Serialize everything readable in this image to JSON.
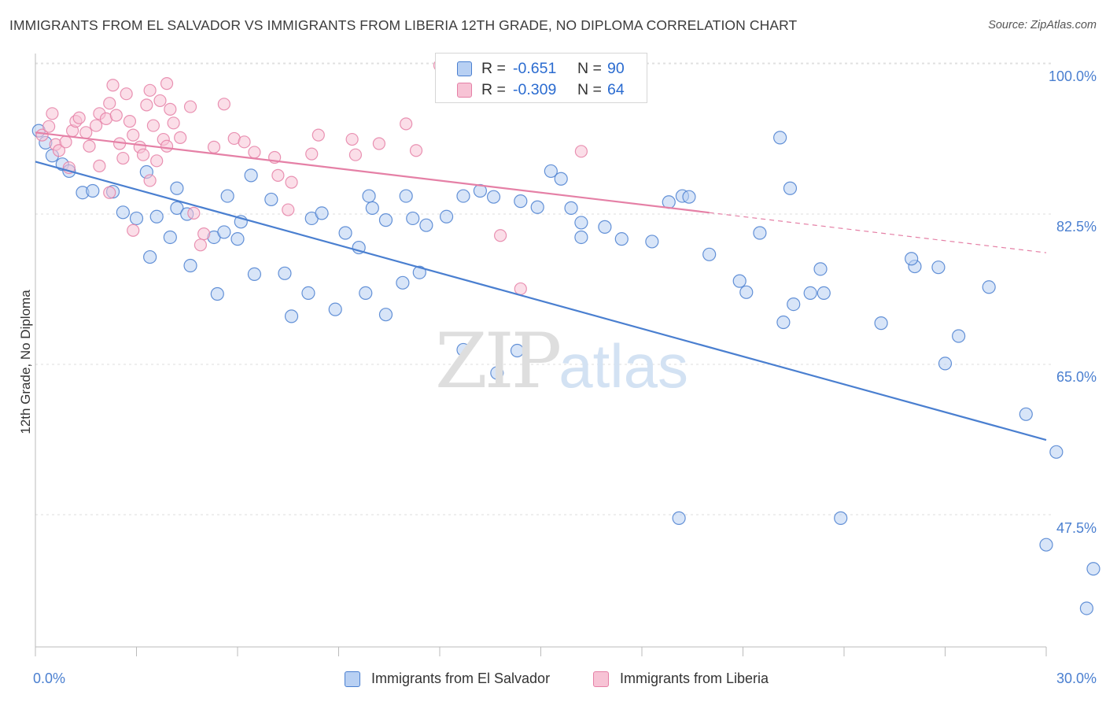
{
  "title": "IMMIGRANTS FROM EL SALVADOR VS IMMIGRANTS FROM LIBERIA 12TH GRADE, NO DIPLOMA CORRELATION CHART",
  "source": "Source: ZipAtlas.com",
  "watermark": {
    "zip": "ZIP",
    "atlas": "atlas"
  },
  "legend": {
    "r_label": "R =",
    "n_label": "N =",
    "rows": [
      {
        "r": "-0.651",
        "n": "90",
        "color": "#4a7fd0",
        "fill": "#b8d0f3"
      },
      {
        "r": "-0.309",
        "n": "64",
        "color": "#e580a6",
        "fill": "#f7c3d5"
      }
    ]
  },
  "chart_data": {
    "type": "scatter",
    "title": "IMMIGRANTS FROM EL SALVADOR VS IMMIGRANTS FROM LIBERIA 12TH GRADE, NO DIPLOMA CORRELATION CHART",
    "xlabel": "",
    "ylabel": "12th Grade, No Diploma",
    "xlim": [
      0,
      30
    ],
    "ylim": [
      32,
      102
    ],
    "x_tick_labels": [
      "0.0%",
      "30.0%"
    ],
    "y_ticks": [
      47.5,
      65.0,
      82.5,
      100.0
    ],
    "y_tick_labels": [
      "47.5%",
      "65.0%",
      "82.5%",
      "100.0%"
    ],
    "grid": "horizontal dashed",
    "series": [
      {
        "name": "Immigrants from El Salvador",
        "color": "#4a7fd0",
        "fill": "#b8d0f3",
        "trend": {
          "x": [
            0,
            30
          ],
          "y": [
            88.6,
            56.2
          ],
          "dashed_from": null
        },
        "points": [
          [
            0.1,
            92.2
          ],
          [
            0.3,
            90.8
          ],
          [
            0.5,
            89.3
          ],
          [
            0.8,
            88.3
          ],
          [
            1.0,
            87.5
          ],
          [
            1.4,
            85.0
          ],
          [
            1.7,
            85.2
          ],
          [
            2.3,
            85.1
          ],
          [
            2.6,
            82.7
          ],
          [
            3.0,
            82.0
          ],
          [
            3.6,
            82.2
          ],
          [
            3.3,
            87.4
          ],
          [
            4.2,
            83.2
          ],
          [
            4.2,
            85.5
          ],
          [
            4.5,
            82.5
          ],
          [
            5.7,
            84.6
          ],
          [
            6.1,
            81.6
          ],
          [
            6.4,
            87.0
          ],
          [
            7.0,
            84.2
          ],
          [
            5.3,
            79.8
          ],
          [
            5.6,
            80.4
          ],
          [
            6.0,
            79.6
          ],
          [
            4.0,
            79.8
          ],
          [
            3.4,
            77.5
          ],
          [
            4.6,
            76.5
          ],
          [
            5.4,
            73.2
          ],
          [
            6.5,
            75.5
          ],
          [
            7.4,
            75.6
          ],
          [
            8.1,
            73.3
          ],
          [
            8.2,
            82.0
          ],
          [
            9.2,
            80.3
          ],
          [
            9.6,
            78.6
          ],
          [
            10.0,
            83.2
          ],
          [
            10.4,
            81.8
          ],
          [
            11.0,
            84.6
          ],
          [
            11.6,
            81.2
          ],
          [
            12.2,
            82.2
          ],
          [
            11.4,
            75.7
          ],
          [
            10.9,
            74.5
          ],
          [
            8.9,
            71.4
          ],
          [
            9.8,
            73.3
          ],
          [
            7.6,
            70.6
          ],
          [
            12.7,
            84.6
          ],
          [
            13.2,
            85.2
          ],
          [
            13.6,
            84.5
          ],
          [
            15.3,
            87.5
          ],
          [
            15.6,
            86.6
          ],
          [
            14.4,
            84.0
          ],
          [
            14.9,
            83.3
          ],
          [
            16.2,
            81.5
          ],
          [
            16.9,
            81.0
          ],
          [
            17.4,
            79.6
          ],
          [
            18.3,
            79.3
          ],
          [
            18.8,
            83.9
          ],
          [
            19.2,
            84.6
          ],
          [
            19.4,
            84.5
          ],
          [
            16.2,
            79.8
          ],
          [
            15.9,
            83.2
          ],
          [
            20.0,
            77.8
          ],
          [
            20.9,
            74.7
          ],
          [
            21.1,
            73.4
          ],
          [
            21.5,
            80.3
          ],
          [
            22.1,
            91.4
          ],
          [
            22.4,
            85.5
          ],
          [
            22.2,
            69.9
          ],
          [
            22.5,
            72.0
          ],
          [
            23.0,
            73.3
          ],
          [
            23.3,
            76.1
          ],
          [
            23.4,
            73.3
          ],
          [
            23.9,
            47.1
          ],
          [
            25.1,
            69.8
          ],
          [
            26.1,
            76.4
          ],
          [
            26.0,
            77.3
          ],
          [
            26.8,
            76.3
          ],
          [
            27.0,
            65.1
          ],
          [
            27.4,
            68.3
          ],
          [
            28.3,
            74.0
          ],
          [
            29.4,
            59.2
          ],
          [
            30.3,
            54.8
          ],
          [
            30.0,
            44.0
          ],
          [
            31.4,
            41.2
          ],
          [
            31.2,
            36.6
          ],
          [
            19.1,
            47.1
          ],
          [
            12.7,
            66.7
          ],
          [
            13.7,
            64.0
          ],
          [
            14.3,
            66.6
          ],
          [
            10.4,
            70.8
          ],
          [
            8.5,
            82.6
          ],
          [
            9.9,
            84.6
          ],
          [
            11.2,
            82.0
          ]
        ]
      },
      {
        "name": "Immigrants from Liberia",
        "color": "#e580a6",
        "fill": "#f7c3d5",
        "trend": {
          "x": [
            0,
            30
          ],
          "y": [
            92.0,
            78.0
          ],
          "dashed_from": 20.0
        },
        "points": [
          [
            0.2,
            91.7
          ],
          [
            0.4,
            92.7
          ],
          [
            0.6,
            90.6
          ],
          [
            0.7,
            89.9
          ],
          [
            0.9,
            90.9
          ],
          [
            1.0,
            87.9
          ],
          [
            1.1,
            92.2
          ],
          [
            1.2,
            93.3
          ],
          [
            1.3,
            93.7
          ],
          [
            1.5,
            92.0
          ],
          [
            1.6,
            90.4
          ],
          [
            1.8,
            92.8
          ],
          [
            1.9,
            94.2
          ],
          [
            2.1,
            93.6
          ],
          [
            2.2,
            95.4
          ],
          [
            2.4,
            94.0
          ],
          [
            2.5,
            90.7
          ],
          [
            2.6,
            89.0
          ],
          [
            2.7,
            96.5
          ],
          [
            2.8,
            93.3
          ],
          [
            2.9,
            91.7
          ],
          [
            3.1,
            90.3
          ],
          [
            3.2,
            89.4
          ],
          [
            3.3,
            95.2
          ],
          [
            3.4,
            96.9
          ],
          [
            3.5,
            92.8
          ],
          [
            3.6,
            88.7
          ],
          [
            3.7,
            95.7
          ],
          [
            3.8,
            91.2
          ],
          [
            3.9,
            90.4
          ],
          [
            4.0,
            94.7
          ],
          [
            4.1,
            93.1
          ],
          [
            4.3,
            91.4
          ],
          [
            4.6,
            95.0
          ],
          [
            5.3,
            90.3
          ],
          [
            5.6,
            95.3
          ],
          [
            5.9,
            91.3
          ],
          [
            6.2,
            90.9
          ],
          [
            6.5,
            89.7
          ],
          [
            7.1,
            89.1
          ],
          [
            7.2,
            87.0
          ],
          [
            7.6,
            86.2
          ],
          [
            7.5,
            83.0
          ],
          [
            8.2,
            89.5
          ],
          [
            8.4,
            91.7
          ],
          [
            9.4,
            91.2
          ],
          [
            9.5,
            89.4
          ],
          [
            10.2,
            90.7
          ],
          [
            11.0,
            93.0
          ],
          [
            11.3,
            89.9
          ],
          [
            12.0,
            99.8
          ],
          [
            4.7,
            82.6
          ],
          [
            5.0,
            80.2
          ],
          [
            4.9,
            78.9
          ],
          [
            3.4,
            86.4
          ],
          [
            2.9,
            80.6
          ],
          [
            2.2,
            85.0
          ],
          [
            1.9,
            88.1
          ],
          [
            0.5,
            94.2
          ],
          [
            2.3,
            97.5
          ],
          [
            3.9,
            97.7
          ],
          [
            14.4,
            73.8
          ],
          [
            13.8,
            80.0
          ],
          [
            16.2,
            89.8
          ]
        ]
      }
    ]
  },
  "bottom_legend": [
    "Immigrants from El Salvador",
    "Immigrants from Liberia"
  ]
}
